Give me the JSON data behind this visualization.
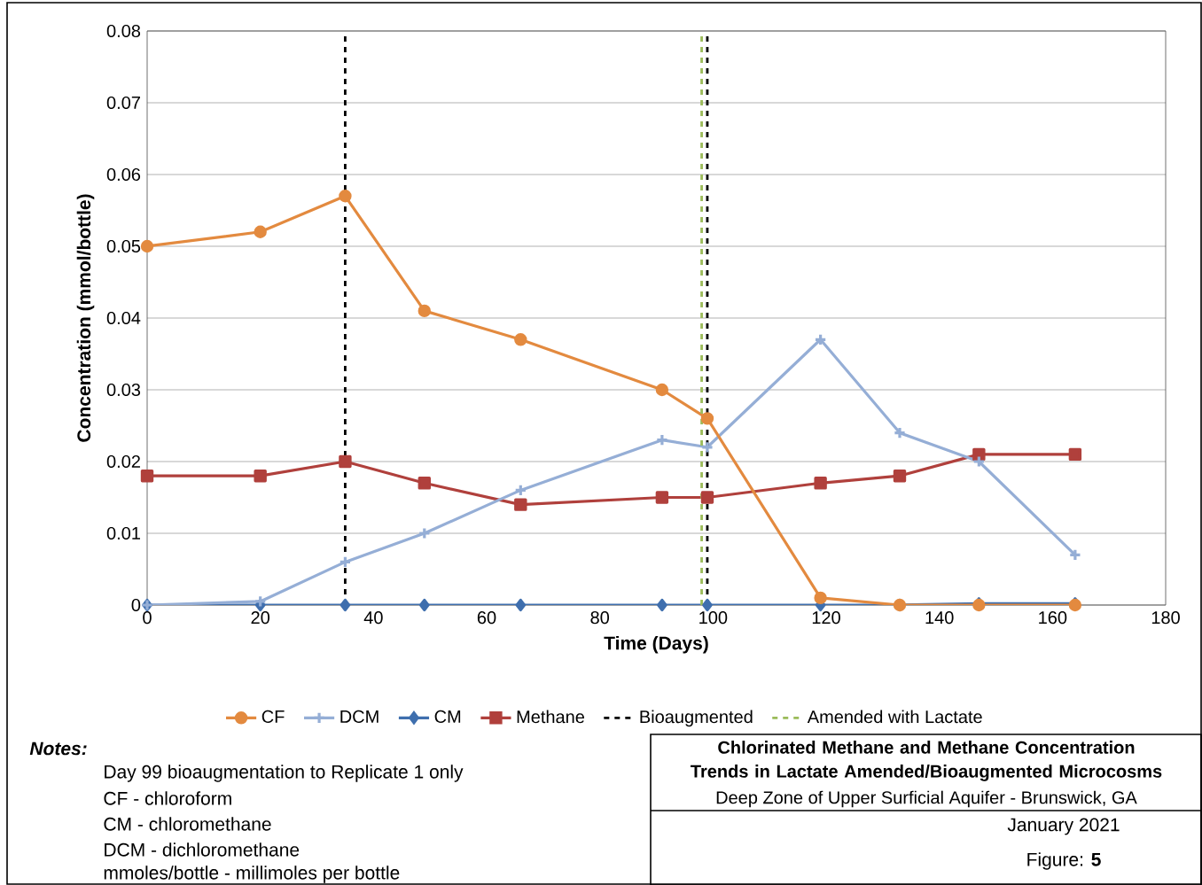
{
  "chart_data": {
    "type": "line",
    "title": "Chlorinated Methane and Methane Concentration Trends in Lactate Amended/Bioaugmented Microcosms",
    "subtitle": "Deep Zone of Upper Surficial Aquifer - Brunswick, GA",
    "xlabel": "Time (Days)",
    "ylabel": "Concentration (mmol/bottle)",
    "x": [
      0,
      20,
      35,
      49,
      66,
      91,
      99,
      119,
      133,
      147,
      164
    ],
    "series": [
      {
        "name": "CF",
        "color": "#e38a3f",
        "marker": "circle",
        "values": [
          0.05,
          0.052,
          0.057,
          0.041,
          0.037,
          0.03,
          0.026,
          0.001,
          0,
          0,
          0
        ]
      },
      {
        "name": "DCM",
        "color": "#95aed6",
        "marker": "cross",
        "values": [
          0,
          0.0005,
          0.006,
          0.01,
          0.016,
          0.023,
          0.022,
          0.037,
          0.024,
          0.02,
          0.007
        ]
      },
      {
        "name": "CM",
        "color": "#3f6fae",
        "marker": "diamond",
        "values": [
          0,
          0,
          0,
          0,
          0,
          0,
          0,
          0,
          0,
          0.0002,
          0.0002
        ]
      },
      {
        "name": "Methane",
        "color": "#b0403c",
        "marker": "square",
        "values": [
          0.018,
          0.018,
          0.02,
          0.017,
          0.014,
          0.015,
          0.015,
          0.017,
          0.018,
          0.021,
          0.021
        ]
      }
    ],
    "ref_lines": [
      {
        "axis": "x",
        "value": 35,
        "label": "Bioaugmented",
        "color": "#000000",
        "line_style": "dashed"
      },
      {
        "axis": "x",
        "value": 99,
        "color": "#000000",
        "line_style": "dashed"
      },
      {
        "axis": "x",
        "value": 98,
        "label": "Amended with Lactate",
        "color": "#9bbb59",
        "line_style": "dashed"
      }
    ],
    "xlim": [
      0,
      180
    ],
    "xticks": [
      0,
      20,
      40,
      60,
      80,
      100,
      120,
      140,
      160,
      180
    ],
    "ylim": [
      0,
      0.08
    ],
    "yticks": [
      0,
      0.01,
      0.02,
      0.03,
      0.04,
      0.05,
      0.06,
      0.07,
      0.08
    ],
    "grid": "y",
    "legend": "bottom",
    "annotations": [
      "Notes:",
      "Day 99 bioaugmentation to Replicate 1 only",
      "CF - chloroform",
      "CM - chloromethane",
      "DCM - dichloromethane",
      "mmoles/bottle - millimoles per bottle",
      "January 2021",
      "Figure: **5**"
    ]
  }
}
